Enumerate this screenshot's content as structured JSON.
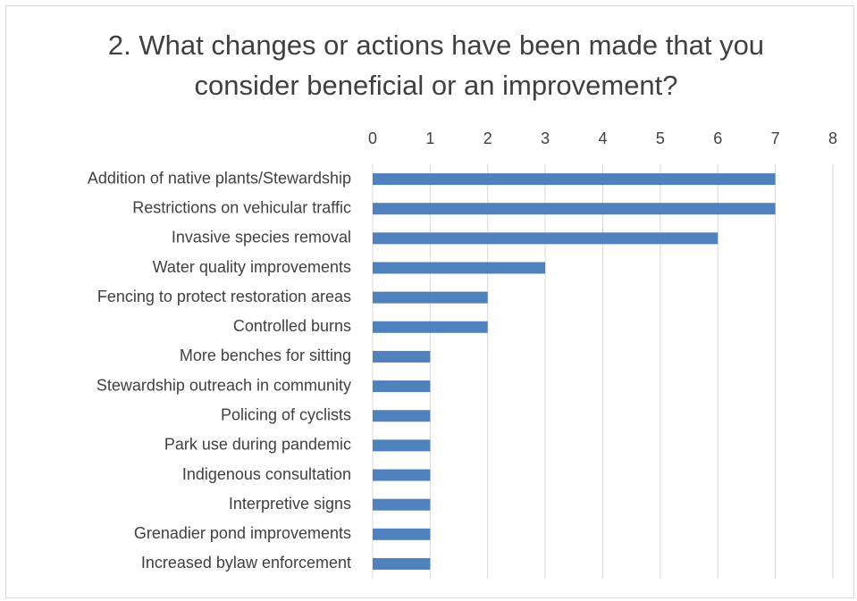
{
  "chart_data": {
    "type": "hbar",
    "title": "2. What changes or actions have been made that you consider beneficial or an improvement?",
    "categories": [
      "Addition of native plants/Stewardship",
      "Restrictions on vehicular traffic",
      "Invasive species removal",
      "Water quality improvements",
      "Fencing to protect restoration areas",
      "Controlled burns",
      "More benches for sitting",
      "Stewardship outreach in community",
      "Policing of cyclists",
      "Park use during pandemic",
      "Indigenous consultation",
      "Interpretive signs",
      "Grenadier pond improvements",
      "Increased bylaw enforcement"
    ],
    "values": [
      7,
      7,
      6,
      3,
      2,
      2,
      1,
      1,
      1,
      1,
      1,
      1,
      1,
      1
    ],
    "color": "#4f81bd",
    "xlim": [
      0,
      8
    ],
    "xticks": [
      0,
      1,
      2,
      3,
      4,
      5,
      6,
      7,
      8
    ],
    "grid": true
  }
}
